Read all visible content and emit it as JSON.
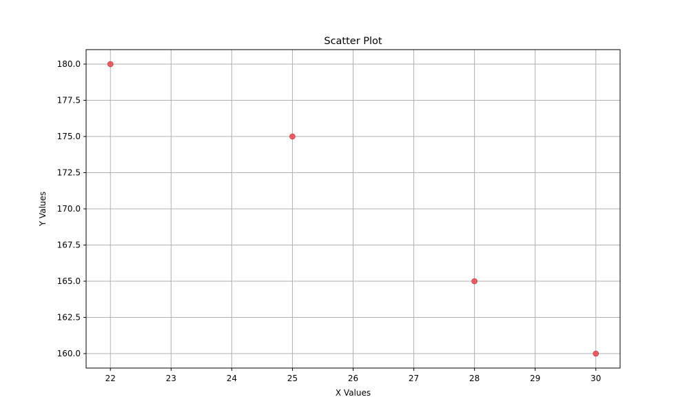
{
  "chart_data": {
    "type": "scatter",
    "title": "Scatter Plot",
    "xlabel": "X Values",
    "ylabel": "Y Values",
    "xlim": [
      21.6,
      30.4
    ],
    "ylim": [
      159.0,
      181.0
    ],
    "xticks": [
      22,
      23,
      24,
      25,
      26,
      27,
      28,
      29,
      30
    ],
    "yticks": [
      160.0,
      162.5,
      165.0,
      167.5,
      170.0,
      172.5,
      175.0,
      177.5,
      180.0
    ],
    "grid": true,
    "points": [
      {
        "x": 22,
        "y": 180
      },
      {
        "x": 25,
        "y": 175
      },
      {
        "x": 28,
        "y": 165
      },
      {
        "x": 30,
        "y": 160
      }
    ],
    "marker_color": "#e8474f"
  }
}
